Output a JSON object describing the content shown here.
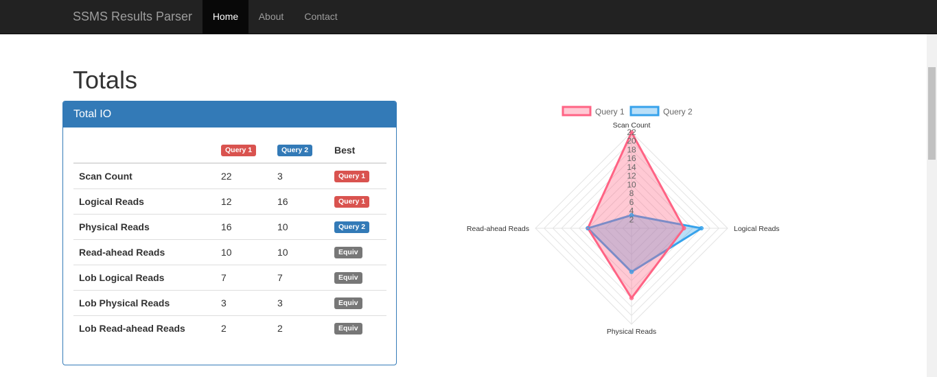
{
  "navbar": {
    "brand": "SSMS Results Parser",
    "items": [
      {
        "label": "Home",
        "active": true
      },
      {
        "label": "About",
        "active": false
      },
      {
        "label": "Contact",
        "active": false
      }
    ]
  },
  "page": {
    "title": "Totals"
  },
  "panel": {
    "heading": "Total IO",
    "headers": {
      "metric": "",
      "q1": "Query 1",
      "q2": "Query 2",
      "best": "Best"
    },
    "rows": [
      {
        "metric": "Scan Count",
        "q1": "22",
        "q2": "3",
        "best": "Query 1",
        "best_style": "danger"
      },
      {
        "metric": "Logical Reads",
        "q1": "12",
        "q2": "16",
        "best": "Query 1",
        "best_style": "danger"
      },
      {
        "metric": "Physical Reads",
        "q1": "16",
        "q2": "10",
        "best": "Query 2",
        "best_style": "primary"
      },
      {
        "metric": "Read-ahead Reads",
        "q1": "10",
        "q2": "10",
        "best": "Equiv",
        "best_style": "default"
      },
      {
        "metric": "Lob Logical Reads",
        "q1": "7",
        "q2": "7",
        "best": "Equiv",
        "best_style": "default"
      },
      {
        "metric": "Lob Physical Reads",
        "q1": "3",
        "q2": "3",
        "best": "Equiv",
        "best_style": "default"
      },
      {
        "metric": "Lob Read-ahead Reads",
        "q1": "2",
        "q2": "2",
        "best": "Equiv",
        "best_style": "default"
      }
    ]
  },
  "chart_data": {
    "type": "radar",
    "categories": [
      "Scan Count",
      "Logical Reads",
      "Physical Reads",
      "Read-ahead Reads"
    ],
    "series": [
      {
        "name": "Query 1",
        "values": [
          22,
          12,
          16,
          10
        ],
        "color": "#ff6384",
        "fill": "rgba(255,99,132,0.35)"
      },
      {
        "name": "Query 2",
        "values": [
          3,
          16,
          10,
          10
        ],
        "color": "#36a2eb",
        "fill": "rgba(54,162,235,0.35)"
      }
    ],
    "rlim": [
      0,
      22
    ],
    "ticks": [
      2,
      4,
      6,
      8,
      10,
      12,
      14,
      16,
      18,
      20,
      22
    ],
    "legend": "top",
    "grid": true
  }
}
